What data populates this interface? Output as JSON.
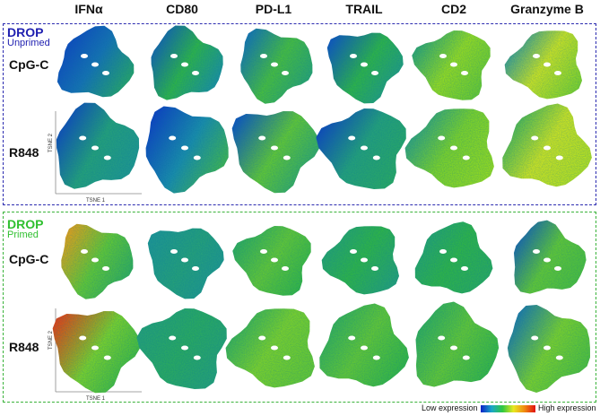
{
  "columns": [
    "IFNα",
    "CD80",
    "PD-L1",
    "TRAIL",
    "CD2",
    "Granzyme B"
  ],
  "panels": [
    {
      "title": "DROP",
      "subtitle": "Unprimed",
      "color": "#1f1fb0",
      "rows": [
        "CpG-C",
        "R848"
      ],
      "intensity": [
        [
          [
            0.05,
            0.15,
            0.35
          ],
          [
            0.1,
            0.4,
            0.2
          ],
          [
            0.15,
            0.45,
            0.3
          ],
          [
            0.1,
            0.4,
            0.25
          ],
          [
            0.3,
            0.6,
            0.5
          ],
          [
            0.2,
            0.7,
            0.55
          ]
        ],
        [
          [
            0.05,
            0.3,
            0.25
          ],
          [
            0.05,
            0.2,
            0.45
          ],
          [
            0.1,
            0.5,
            0.3
          ],
          [
            0.05,
            0.3,
            0.35
          ],
          [
            0.25,
            0.55,
            0.6
          ],
          [
            0.35,
            0.7,
            0.65
          ]
        ]
      ]
    },
    {
      "title": "DROP",
      "subtitle": "Primed",
      "color": "#30c030",
      "rows": [
        "CpG-C",
        "R848"
      ],
      "intensity": [
        [
          [
            0.85,
            0.5,
            0.35
          ],
          [
            0.25,
            0.3,
            0.25
          ],
          [
            0.35,
            0.5,
            0.4
          ],
          [
            0.3,
            0.4,
            0.3
          ],
          [
            0.3,
            0.4,
            0.35
          ],
          [
            0.1,
            0.5,
            0.45
          ]
        ],
        [
          [
            0.95,
            0.55,
            0.4
          ],
          [
            0.3,
            0.35,
            0.3
          ],
          [
            0.35,
            0.55,
            0.5
          ],
          [
            0.35,
            0.5,
            0.4
          ],
          [
            0.35,
            0.5,
            0.4
          ],
          [
            0.15,
            0.55,
            0.45
          ]
        ]
      ]
    }
  ],
  "axes": {
    "x": "TSNE 1",
    "y": "TSNE 2"
  },
  "legend": {
    "low": "Low expression",
    "high": "High expression"
  }
}
